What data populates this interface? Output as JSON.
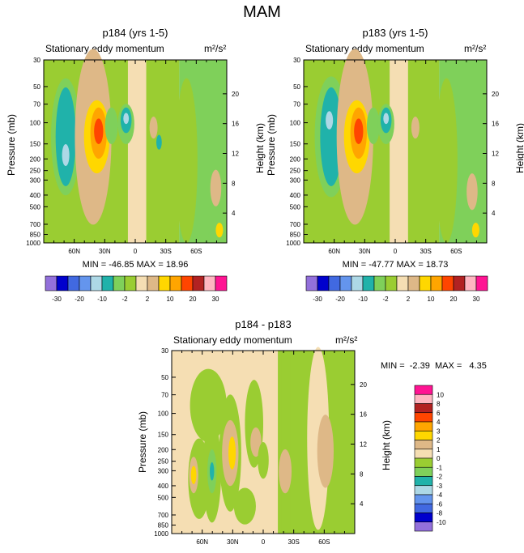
{
  "figure_title": "MAM",
  "colors": {
    "palette_full": [
      "#9370DB",
      "#0000CD",
      "#4169E1",
      "#6495ED",
      "#ADD8E6",
      "#20B2AA",
      "#7FD05A",
      "#9ACD32",
      "#F5DEB3",
      "#DEB887",
      "#FFD700",
      "#FFA500",
      "#FF4500",
      "#B22222",
      "#FFB6C1",
      "#FF1493"
    ],
    "bg_field": "#F5DEB3"
  },
  "chart_data": [
    {
      "type": "heatmap",
      "panel": "p184",
      "title": "p184 (yrs 1-5)",
      "subtitle": "Stationary eddy momentum",
      "units": "m²/s²",
      "ylabel_left": "Pressure (mb)",
      "ylabel_right": "Height (km)",
      "pressure_ticks": [
        "30",
        "50",
        "70",
        "100",
        "150",
        "200",
        "250",
        "300",
        "400",
        "500",
        "700",
        "850",
        "1000"
      ],
      "height_ticks": [
        "20",
        "16",
        "12",
        "8",
        "4"
      ],
      "lat_ticks": [
        "60N",
        "30N",
        "0",
        "30S",
        "60S"
      ],
      "min": "-46.85",
      "max": "18.96",
      "stats_text": "MIN = -46.85  MAX = 18.96",
      "colorbar_labels": [
        "-30",
        "-20",
        "-10",
        "-2",
        "2",
        "10",
        "20",
        "30"
      ]
    },
    {
      "type": "heatmap",
      "panel": "p183",
      "title": "p183 (yrs 1-5)",
      "subtitle": "Stationary eddy momentum",
      "units": "m²/s²",
      "ylabel_left": "Pressure (mb)",
      "ylabel_right": "Height (km)",
      "pressure_ticks": [
        "30",
        "50",
        "70",
        "100",
        "150",
        "200",
        "250",
        "300",
        "400",
        "500",
        "700",
        "850",
        "1000"
      ],
      "height_ticks": [
        "20",
        "16",
        "12",
        "8",
        "4"
      ],
      "lat_ticks": [
        "60N",
        "30N",
        "0",
        "30S",
        "60S"
      ],
      "min": "-47.77",
      "max": "18.73",
      "stats_text": "MIN = -47.77  MAX = 18.73",
      "colorbar_labels": [
        "-30",
        "-20",
        "-10",
        "-2",
        "2",
        "10",
        "20",
        "30"
      ]
    },
    {
      "type": "heatmap",
      "panel": "diff",
      "title": "p184 - p183",
      "subtitle": "Stationary eddy momentum",
      "units": "m²/s²",
      "ylabel_left": "Pressure (mb)",
      "ylabel_right": "Height (km)",
      "pressure_ticks": [
        "30",
        "50",
        "70",
        "100",
        "150",
        "200",
        "250",
        "300",
        "400",
        "500",
        "700",
        "850",
        "1000"
      ],
      "height_ticks": [
        "20",
        "16",
        "12",
        "8",
        "4"
      ],
      "lat_ticks": [
        "60N",
        "30N",
        "0",
        "30S",
        "60S"
      ],
      "min": "-2.39",
      "max": "4.35",
      "stats_text": "MIN =  -2.39  MAX =   4.35",
      "colorbar_labels": [
        "10",
        "8",
        "6",
        "4",
        "3",
        "2",
        "1",
        "0",
        "-1",
        "-2",
        "-3",
        "-4",
        "-6",
        "-8",
        "-10"
      ]
    }
  ]
}
